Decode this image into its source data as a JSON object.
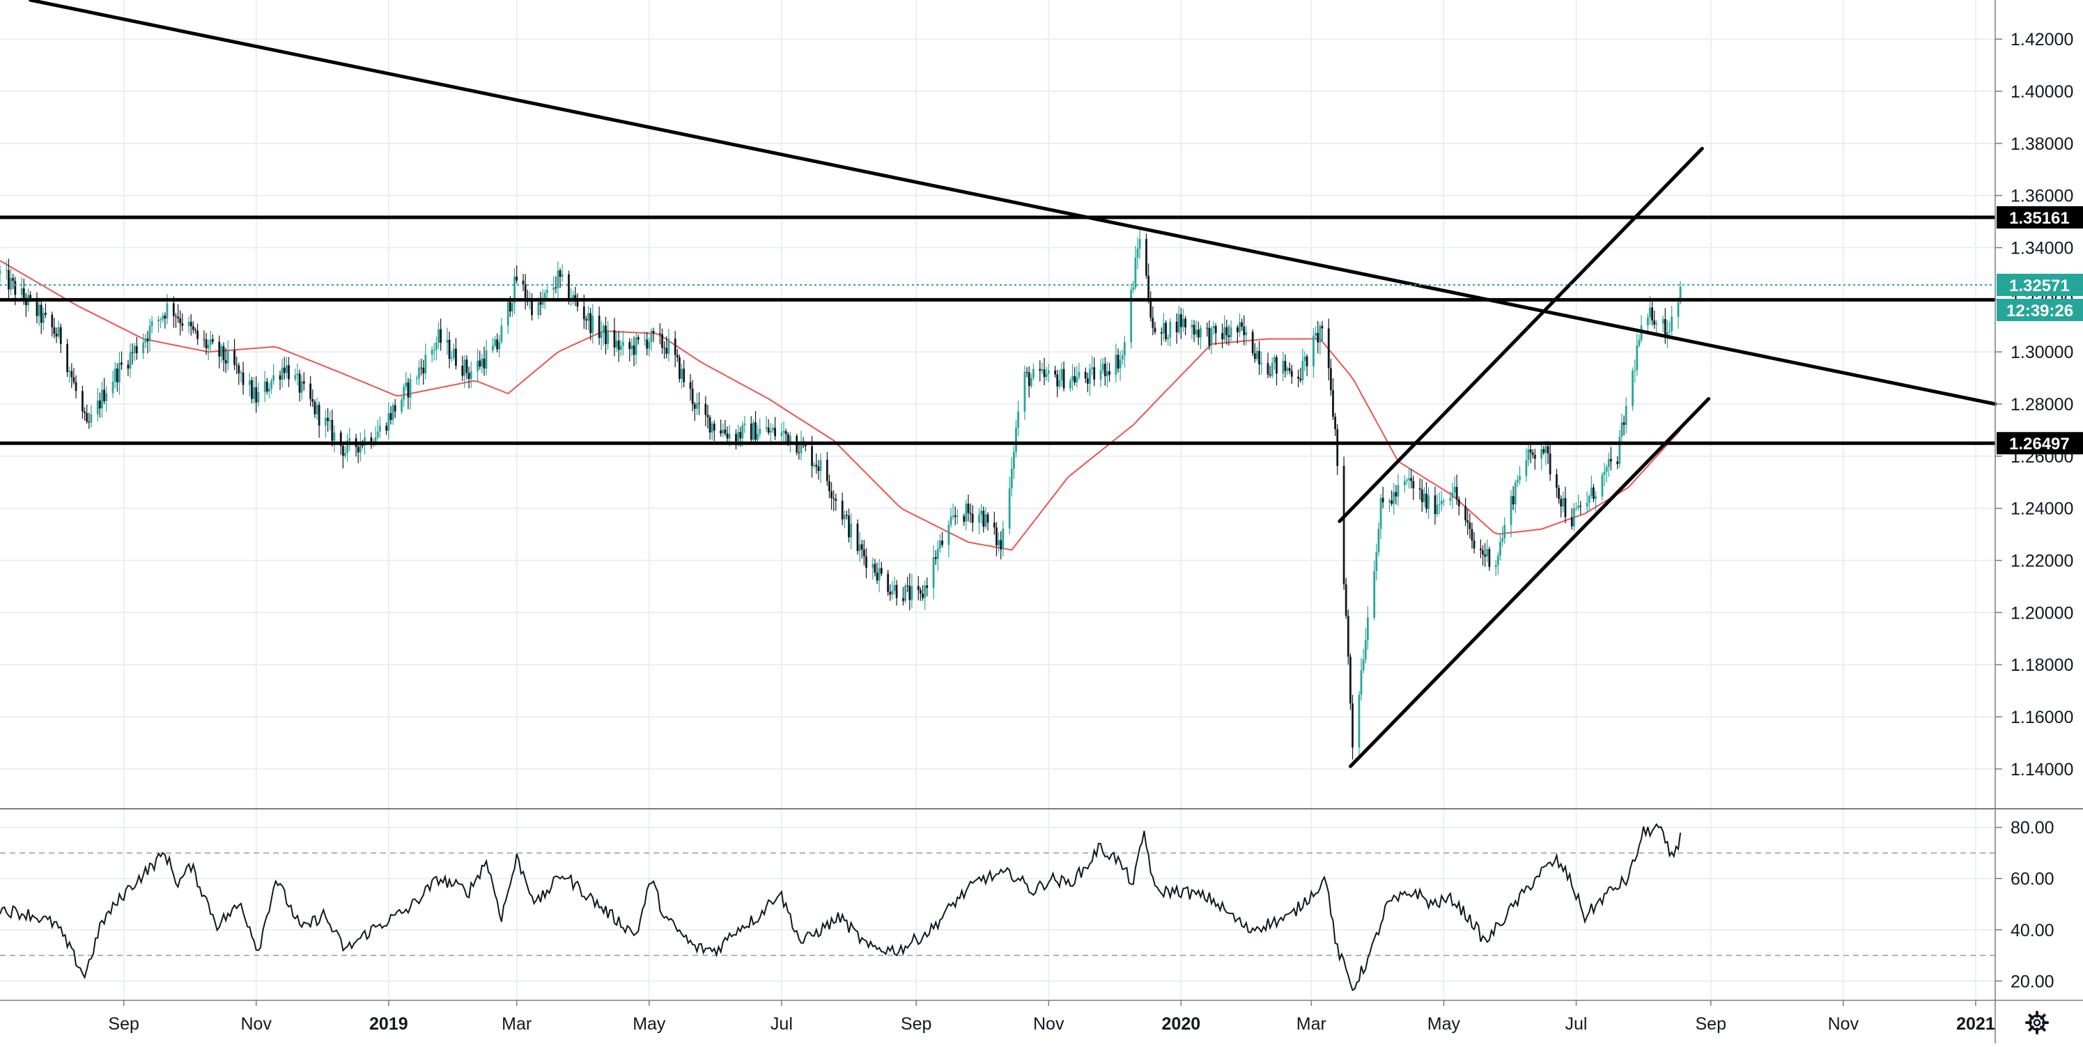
{
  "chart_data": {
    "type": "candlestick",
    "price_axis": {
      "range": [
        1.125,
        1.435
      ],
      "ticks": [
        "1.14000",
        "1.16000",
        "1.18000",
        "1.20000",
        "1.22000",
        "1.24000",
        "1.26000",
        "1.28000",
        "1.30000",
        "1.32000",
        "1.34000",
        "1.36000",
        "1.38000",
        "1.40000",
        "1.42000"
      ]
    },
    "rsi_axis": {
      "range": [
        13,
        87
      ],
      "ticks": [
        "20.00",
        "40.00",
        "60.00",
        "80.00"
      ],
      "bands": [
        30,
        70
      ]
    },
    "time_axis": {
      "range": [
        "2018-07-06",
        "2021-01-10"
      ],
      "ticks": [
        {
          "date": "2018-09-01",
          "label": "Sep",
          "bold": false
        },
        {
          "date": "2018-11-01",
          "label": "Nov",
          "bold": false
        },
        {
          "date": "2019-01-01",
          "label": "2019",
          "bold": true
        },
        {
          "date": "2019-03-01",
          "label": "Mar",
          "bold": false
        },
        {
          "date": "2019-05-01",
          "label": "May",
          "bold": false
        },
        {
          "date": "2019-07-01",
          "label": "Jul",
          "bold": false
        },
        {
          "date": "2019-09-01",
          "label": "Sep",
          "bold": false
        },
        {
          "date": "2019-11-01",
          "label": "Nov",
          "bold": false
        },
        {
          "date": "2020-01-01",
          "label": "2020",
          "bold": true
        },
        {
          "date": "2020-03-01",
          "label": "Mar",
          "bold": false
        },
        {
          "date": "2020-05-01",
          "label": "May",
          "bold": false
        },
        {
          "date": "2020-07-01",
          "label": "Jul",
          "bold": false
        },
        {
          "date": "2020-09-01",
          "label": "Sep",
          "bold": false
        },
        {
          "date": "2020-11-01",
          "label": "Nov",
          "bold": false
        },
        {
          "date": "2021-01-01",
          "label": "2021",
          "bold": true
        }
      ]
    },
    "close_anchors": [
      [
        "2018-07-06",
        1.33
      ],
      [
        "2018-07-20",
        1.318
      ],
      [
        "2018-08-03",
        1.305
      ],
      [
        "2018-08-15",
        1.27
      ],
      [
        "2018-08-25",
        1.288
      ],
      [
        "2018-09-10",
        1.305
      ],
      [
        "2018-09-22",
        1.318
      ],
      [
        "2018-10-05",
        1.305
      ],
      [
        "2018-10-20",
        1.296
      ],
      [
        "2018-11-01",
        1.282
      ],
      [
        "2018-11-14",
        1.295
      ],
      [
        "2018-11-28",
        1.278
      ],
      [
        "2018-12-12",
        1.262
      ],
      [
        "2018-12-28",
        1.27
      ],
      [
        "2019-01-10",
        1.286
      ],
      [
        "2019-01-24",
        1.305
      ],
      [
        "2019-02-07",
        1.292
      ],
      [
        "2019-02-20",
        1.302
      ],
      [
        "2019-03-01",
        1.328
      ],
      [
        "2019-03-10",
        1.315
      ],
      [
        "2019-03-20",
        1.328
      ],
      [
        "2019-04-05",
        1.31
      ],
      [
        "2019-04-20",
        1.3
      ],
      [
        "2019-05-01",
        1.305
      ],
      [
        "2019-05-10",
        1.302
      ],
      [
        "2019-05-25",
        1.275
      ],
      [
        "2019-06-08",
        1.268
      ],
      [
        "2019-06-20",
        1.27
      ],
      [
        "2019-07-05",
        1.268
      ],
      [
        "2019-07-20",
        1.255
      ],
      [
        "2019-08-05",
        1.225
      ],
      [
        "2019-08-20",
        1.21
      ],
      [
        "2019-09-03",
        1.205
      ],
      [
        "2019-09-10",
        1.222
      ],
      [
        "2019-09-20",
        1.238
      ],
      [
        "2019-10-01",
        1.238
      ],
      [
        "2019-10-10",
        1.225
      ],
      [
        "2019-10-20",
        1.29
      ],
      [
        "2019-11-05",
        1.29
      ],
      [
        "2019-11-20",
        1.29
      ],
      [
        "2019-12-05",
        1.298
      ],
      [
        "2019-12-13",
        1.345
      ],
      [
        "2019-12-20",
        1.305
      ],
      [
        "2019-12-31",
        1.312
      ],
      [
        "2020-01-15",
        1.306
      ],
      [
        "2020-01-28",
        1.308
      ],
      [
        "2020-02-10",
        1.295
      ],
      [
        "2020-02-25",
        1.292
      ],
      [
        "2020-03-06",
        1.31
      ],
      [
        "2020-03-12",
        1.27
      ],
      [
        "2020-03-15",
        1.23
      ],
      [
        "2020-03-20",
        1.15
      ],
      [
        "2020-03-25",
        1.185
      ],
      [
        "2020-04-02",
        1.24
      ],
      [
        "2020-04-15",
        1.25
      ],
      [
        "2020-04-25",
        1.24
      ],
      [
        "2020-05-05",
        1.248
      ],
      [
        "2020-05-15",
        1.225
      ],
      [
        "2020-05-25",
        1.22
      ],
      [
        "2020-06-05",
        1.255
      ],
      [
        "2020-06-15",
        1.265
      ],
      [
        "2020-06-28",
        1.235
      ],
      [
        "2020-07-08",
        1.245
      ],
      [
        "2020-07-20",
        1.26
      ],
      [
        "2020-07-30",
        1.305
      ],
      [
        "2020-08-05",
        1.315
      ],
      [
        "2020-08-12",
        1.308
      ],
      [
        "2020-08-18",
        1.325
      ]
    ],
    "ma_anchors": [
      [
        "2018-07-06",
        1.335
      ],
      [
        "2018-08-10",
        1.318
      ],
      [
        "2018-09-10",
        1.305
      ],
      [
        "2018-10-10",
        1.3
      ],
      [
        "2018-11-10",
        1.302
      ],
      [
        "2018-12-10",
        1.292
      ],
      [
        "2019-01-05",
        1.283
      ],
      [
        "2019-02-10",
        1.289
      ],
      [
        "2019-02-25",
        1.284
      ],
      [
        "2019-03-20",
        1.3
      ],
      [
        "2019-04-10",
        1.308
      ],
      [
        "2019-05-05",
        1.307
      ],
      [
        "2019-05-25",
        1.296
      ],
      [
        "2019-06-25",
        1.282
      ],
      [
        "2019-07-25",
        1.266
      ],
      [
        "2019-08-25",
        1.24
      ],
      [
        "2019-09-25",
        1.227
      ],
      [
        "2019-10-15",
        1.224
      ],
      [
        "2019-11-10",
        1.252
      ],
      [
        "2019-12-10",
        1.272
      ],
      [
        "2019-12-25",
        1.285
      ],
      [
        "2020-01-15",
        1.303
      ],
      [
        "2020-02-10",
        1.305
      ],
      [
        "2020-03-05",
        1.305
      ],
      [
        "2020-03-20",
        1.29
      ],
      [
        "2020-04-10",
        1.258
      ],
      [
        "2020-05-05",
        1.245
      ],
      [
        "2020-05-25",
        1.23
      ],
      [
        "2020-06-15",
        1.232
      ],
      [
        "2020-07-05",
        1.238
      ],
      [
        "2020-07-25",
        1.248
      ],
      [
        "2020-08-18",
        1.27
      ]
    ],
    "rsi_anchors": [
      [
        "2018-07-06",
        48
      ],
      [
        "2018-07-20",
        46
      ],
      [
        "2018-08-01",
        42
      ],
      [
        "2018-08-14",
        22
      ],
      [
        "2018-08-22",
        43
      ],
      [
        "2018-09-02",
        55
      ],
      [
        "2018-09-14",
        65
      ],
      [
        "2018-09-20",
        70
      ],
      [
        "2018-09-26",
        58
      ],
      [
        "2018-10-02",
        65
      ],
      [
        "2018-10-14",
        42
      ],
      [
        "2018-10-25",
        50
      ],
      [
        "2018-11-02",
        32
      ],
      [
        "2018-11-10",
        60
      ],
      [
        "2018-11-22",
        40
      ],
      [
        "2018-12-02",
        46
      ],
      [
        "2018-12-12",
        32
      ],
      [
        "2018-12-24",
        40
      ],
      [
        "2019-01-10",
        48
      ],
      [
        "2019-01-24",
        60
      ],
      [
        "2019-02-07",
        55
      ],
      [
        "2019-02-15",
        67
      ],
      [
        "2019-02-22",
        45
      ],
      [
        "2019-03-01",
        68
      ],
      [
        "2019-03-10",
        50
      ],
      [
        "2019-03-22",
        62
      ],
      [
        "2019-04-10",
        48
      ],
      [
        "2019-04-25",
        38
      ],
      [
        "2019-05-02",
        60
      ],
      [
        "2019-05-08",
        45
      ],
      [
        "2019-05-22",
        33
      ],
      [
        "2019-06-01",
        32
      ],
      [
        "2019-06-10",
        40
      ],
      [
        "2019-06-20",
        45
      ],
      [
        "2019-06-30",
        55
      ],
      [
        "2019-07-10",
        35
      ],
      [
        "2019-07-28",
        45
      ],
      [
        "2019-08-10",
        33
      ],
      [
        "2019-08-24",
        32
      ],
      [
        "2019-09-08",
        40
      ],
      [
        "2019-09-20",
        52
      ],
      [
        "2019-10-01",
        60
      ],
      [
        "2019-10-15",
        62
      ],
      [
        "2019-10-25",
        55
      ],
      [
        "2019-11-02",
        60
      ],
      [
        "2019-11-10",
        58
      ],
      [
        "2019-11-18",
        64
      ],
      [
        "2019-11-24",
        72
      ],
      [
        "2019-12-02",
        68
      ],
      [
        "2019-12-10",
        58
      ],
      [
        "2019-12-15",
        78
      ],
      [
        "2019-12-20",
        55
      ],
      [
        "2020-01-02",
        55
      ],
      [
        "2020-01-15",
        52
      ],
      [
        "2020-02-01",
        40
      ],
      [
        "2020-02-20",
        45
      ],
      [
        "2020-03-08",
        60
      ],
      [
        "2020-03-12",
        35
      ],
      [
        "2020-03-20",
        17
      ],
      [
        "2020-03-28",
        30
      ],
      [
        "2020-04-05",
        50
      ],
      [
        "2020-04-18",
        55
      ],
      [
        "2020-04-25",
        50
      ],
      [
        "2020-05-05",
        52
      ],
      [
        "2020-05-15",
        42
      ],
      [
        "2020-05-20",
        35
      ],
      [
        "2020-06-01",
        48
      ],
      [
        "2020-06-14",
        62
      ],
      [
        "2020-06-22",
        67
      ],
      [
        "2020-06-28",
        60
      ],
      [
        "2020-07-05",
        45
      ],
      [
        "2020-07-15",
        54
      ],
      [
        "2020-07-25",
        60
      ],
      [
        "2020-08-01",
        78
      ],
      [
        "2020-08-08",
        80
      ],
      [
        "2020-08-14",
        68
      ],
      [
        "2020-08-18",
        76
      ]
    ],
    "horizontal_lines": [
      1.35161,
      1.32,
      1.26497
    ],
    "trend_lines": [
      {
        "from": [
          "2018-07-20",
          1.435
        ],
        "to": [
          "2021-01-10",
          1.28
        ]
      },
      {
        "from": [
          "2020-03-19",
          1.141
        ],
        "to": [
          "2020-08-31",
          1.282
        ]
      },
      {
        "from": [
          "2020-03-14",
          1.235
        ],
        "to": [
          "2020-08-28",
          1.378
        ]
      }
    ],
    "last_price_line": 1.32571,
    "price_labels": [
      {
        "value": 1.35161,
        "text": "1.35161",
        "style": "dark"
      },
      {
        "value": 1.32571,
        "text": "1.32571",
        "style": "teal"
      },
      {
        "value": 1.26497,
        "text": "1.26497",
        "style": "dark"
      }
    ],
    "countdown": "12:39:26",
    "colors": {
      "up": "#26a69a",
      "down": "#131722",
      "ma": "#ef5350",
      "rsi": "#131722",
      "grid": "#e6eaef",
      "drawing": "#000000",
      "teal": "#26a69a"
    }
  },
  "icons": {
    "settings": "gear-icon"
  }
}
